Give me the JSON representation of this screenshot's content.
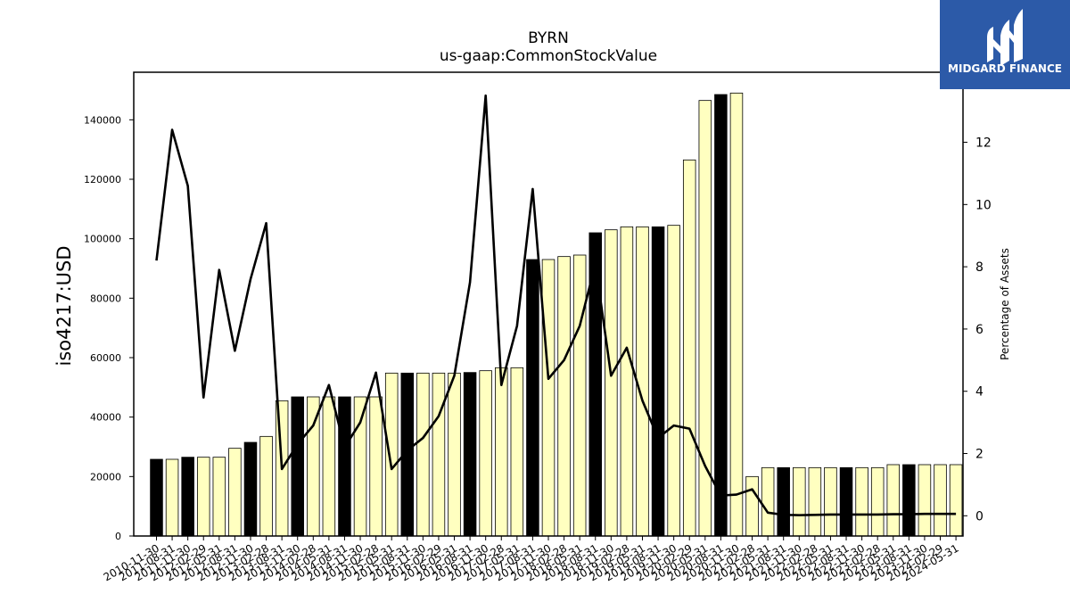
{
  "chart_data": {
    "type": "bar",
    "title": "BYRN",
    "subtitle": "us-gaap:CommonStockValue",
    "ylabel": "iso4217:USD",
    "y2label": "Percentage of Assets",
    "ylim": [
      0,
      156000
    ],
    "y2lim": [
      -0.65,
      14.25
    ],
    "yticks": [
      0,
      20000,
      40000,
      60000,
      80000,
      100000,
      120000,
      140000
    ],
    "y2ticks": [
      0,
      2,
      4,
      6,
      8,
      10,
      12
    ],
    "categories": [
      "2010-11-30",
      "2011-08-31",
      "2011-11-30",
      "2012-02-29",
      "2012-05-31",
      "2012-08-31",
      "2012-11-30",
      "2013-02-28",
      "2013-08-31",
      "2013-11-30",
      "2014-02-28",
      "2014-05-31",
      "2014-08-31",
      "2014-11-30",
      "2015-02-28",
      "2015-05-31",
      "2015-08-31",
      "2015-11-30",
      "2016-02-29",
      "2016-05-31",
      "2016-08-31",
      "2016-11-30",
      "2017-02-28",
      "2017-05-31",
      "2017-08-31",
      "2017-11-30",
      "2018-02-28",
      "2018-05-31",
      "2018-08-31",
      "2018-11-30",
      "2019-02-28",
      "2019-05-31",
      "2019-08-31",
      "2019-11-30",
      "2020-02-29",
      "2020-05-31",
      "2020-08-31",
      "2020-11-30",
      "2021-02-28",
      "2021-05-31",
      "2021-08-31",
      "2021-11-30",
      "2022-02-28",
      "2022-05-31",
      "2022-08-31",
      "2022-11-30",
      "2023-02-28",
      "2023-05-31",
      "2023-08-31",
      "2023-11-30",
      "2024-02-29",
      "2024-05-31"
    ],
    "series": [
      {
        "type": "bar",
        "values": [
          25800,
          25800,
          26500,
          26500,
          26500,
          29500,
          31500,
          33500,
          45500,
          46800,
          46800,
          46800,
          46800,
          46800,
          46800,
          54800,
          54800,
          54800,
          54800,
          54800,
          55000,
          55600,
          56600,
          56600,
          93000,
          93000,
          94000,
          94500,
          102000,
          103000,
          104000,
          104000,
          104000,
          104500,
          126500,
          146500,
          148500,
          149000,
          20000,
          23000,
          23000,
          23000,
          23000,
          23000,
          23000,
          23000,
          23000,
          24000,
          24000,
          24000,
          24000,
          24000
        ],
        "highlight": [
          true,
          false,
          true,
          false,
          false,
          false,
          true,
          false,
          false,
          true,
          false,
          false,
          true,
          false,
          false,
          false,
          true,
          false,
          false,
          false,
          true,
          false,
          false,
          false,
          true,
          false,
          false,
          false,
          true,
          false,
          false,
          false,
          true,
          false,
          false,
          false,
          true,
          false,
          false,
          false,
          true,
          false,
          false,
          false,
          true,
          false,
          false,
          false,
          true,
          false,
          false,
          false
        ],
        "colors": {
          "highlight": "#000000",
          "normal": "#ffffc0",
          "edge": "#000000"
        }
      },
      {
        "type": "line",
        "axis": "right",
        "values": [
          8.2,
          12.4,
          10.6,
          3.8,
          7.9,
          5.3,
          7.6,
          9.4,
          1.5,
          2.3,
          2.9,
          4.2,
          2.2,
          3.0,
          4.6,
          1.5,
          2.1,
          2.5,
          3.2,
          4.5,
          7.5,
          13.5,
          4.2,
          6.1,
          10.5,
          4.4,
          5.0,
          6.1,
          8.1,
          4.5,
          5.4,
          3.7,
          2.5,
          2.9,
          2.8,
          1.6,
          0.65,
          0.68,
          0.85,
          0.1,
          0.03,
          0.02,
          0.03,
          0.04,
          0.04,
          0.04,
          0.04,
          0.05,
          0.05,
          0.06,
          0.06,
          0.06
        ],
        "color": "#000000"
      }
    ],
    "grid": false,
    "legend": "none"
  },
  "logo": {
    "text": "MIDGARD FINANCE",
    "bg_color": "#2c5aa8"
  }
}
